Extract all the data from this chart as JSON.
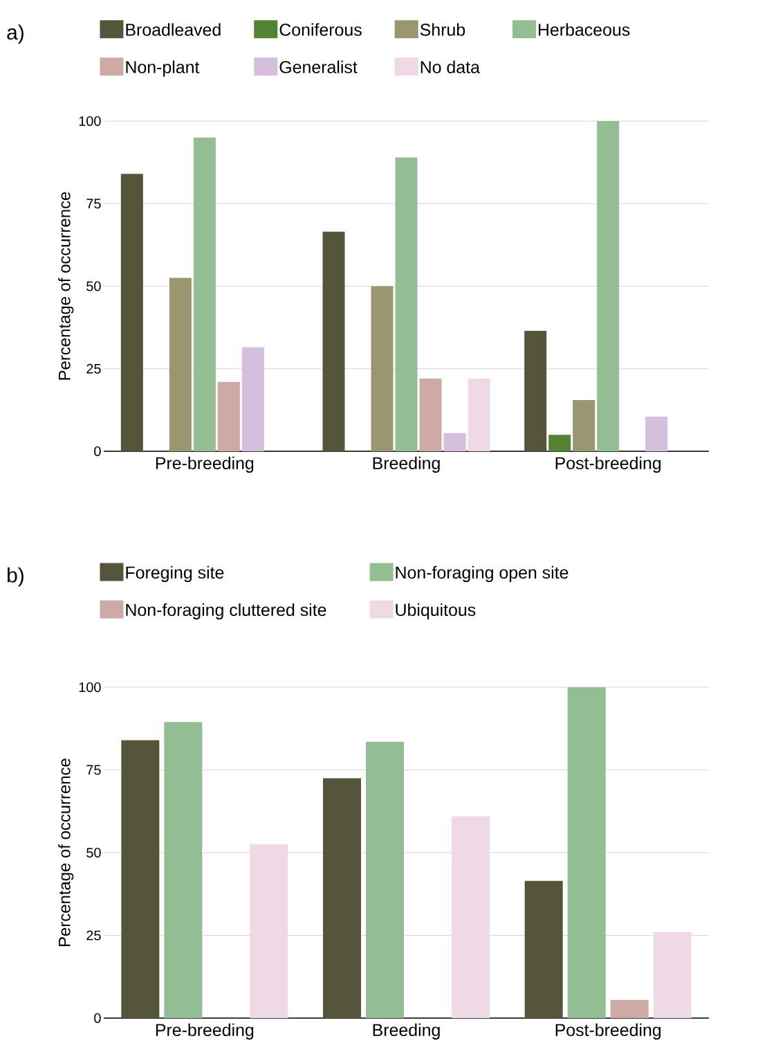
{
  "chart_data": [
    {
      "type": "bar",
      "ylabel": "Percentage of occurrence",
      "annotations": [
        "a)"
      ],
      "categories": [
        "Pre-breeding",
        "Breeding",
        "Post-breeding"
      ],
      "series": [
        {
          "name": "Broadleaved",
          "color": "#55553c",
          "values": [
            84,
            66.5,
            36.5
          ]
        },
        {
          "name": "Coniferous",
          "color": "#548235",
          "values": [
            0,
            0,
            5
          ]
        },
        {
          "name": "Shrub",
          "color": "#999670",
          "values": [
            52.5,
            50,
            15.5
          ]
        },
        {
          "name": "Herbaceous",
          "color": "#93bd92",
          "values": [
            95,
            89,
            100
          ]
        },
        {
          "name": "Non-plant",
          "color": "#cdaaa5",
          "values": [
            21,
            22,
            0
          ]
        },
        {
          "name": "Generalist",
          "color": "#d5bfdc",
          "values": [
            31.5,
            5.5,
            10.5
          ]
        },
        {
          "name": "No data",
          "color": "#eed9e5",
          "values": [
            0,
            22,
            0
          ]
        }
      ],
      "ylim": [
        0,
        100
      ],
      "yticks": [
        0,
        25,
        50,
        75,
        100
      ],
      "grid": "y",
      "legend": "top"
    },
    {
      "type": "bar",
      "ylabel": "Percentage of occurrence",
      "annotations": [
        "b)"
      ],
      "categories": [
        "Pre-breeding",
        "Breeding",
        "Post-breeding"
      ],
      "series": [
        {
          "name": "Foreging site",
          "color": "#55553c",
          "values": [
            84,
            72.5,
            41.5
          ]
        },
        {
          "name": "Non-foraging open site",
          "color": "#93bd92",
          "values": [
            89.5,
            83.5,
            100
          ]
        },
        {
          "name": "Non-foraging cluttered site",
          "color": "#cdaaa5",
          "values": [
            0,
            0,
            5.5
          ]
        },
        {
          "name": "Ubiquitous",
          "color": "#eed9e5",
          "values": [
            52.5,
            61,
            26
          ]
        }
      ],
      "ylim": [
        0,
        100
      ],
      "yticks": [
        0,
        25,
        50,
        75,
        100
      ],
      "grid": "y",
      "legend": "top"
    }
  ]
}
